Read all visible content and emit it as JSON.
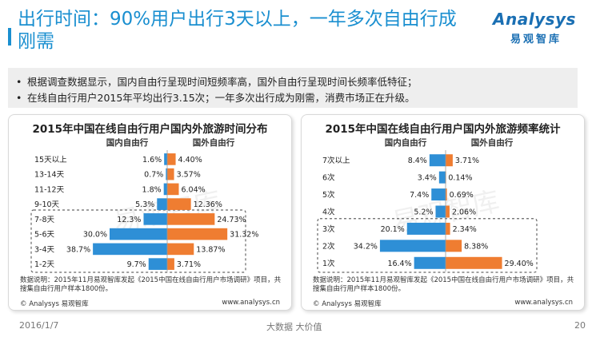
{
  "header": {
    "title": "出行时间：90%用户出行3天以上，一年多次自由行成刚需",
    "logo_word": "Analysys",
    "logo_sub": "易观智库"
  },
  "bullets": [
    "根据调查数据显示，国内自由行呈现时间短频率高，国外自由行呈现时间长频率低特征；",
    "在线自由行用户2015年平均出行3.15次；一年多次出行成为刚需，消费市场正在升级。"
  ],
  "colors": {
    "domestic": "#2e8fd6",
    "foreign": "#ef7d31",
    "title": "#1a8fd0"
  },
  "chart_data": [
    {
      "type": "bar",
      "orientation": "horizontal-diverging",
      "title": "2015年中国在线自由行用户国内外旅游时间分布",
      "legend": [
        "国内自由行",
        "国外自由行"
      ],
      "categories": [
        "15天以上",
        "13-14天",
        "11-12天",
        "9-10天",
        "7-8天",
        "5-6天",
        "3-4天",
        "1-2天"
      ],
      "series": [
        {
          "name": "国内自由行",
          "values": [
            1.6,
            0.7,
            1.8,
            5.3,
            12.3,
            30.0,
            38.7,
            9.7
          ],
          "labels": [
            "1.6%",
            "0.7%",
            "1.8%",
            "5.3%",
            "12.3%",
            "30.0%",
            "38.7%",
            "9.7%"
          ]
        },
        {
          "name": "国外自由行",
          "values": [
            4.4,
            3.57,
            6.04,
            12.36,
            24.73,
            31.32,
            13.87,
            3.71
          ],
          "labels": [
            "4.40%",
            "3.57%",
            "6.04%",
            "12.36%",
            "24.73%",
            "31.32%",
            "13.87%",
            "3.71%"
          ]
        }
      ],
      "xlim": [
        0,
        40
      ],
      "highlight_categories": [
        "7-8天",
        "5-6天",
        "3-4天",
        "1-2天"
      ],
      "watermark": "易观智库",
      "note": "数据说明：2015年11月易观智库发起《2015中国在线自由行用户市场调研》项目，共搜集自由行用户样本1800份。",
      "source_left": "© Analysys 易观智库",
      "source_right": "www.analysys.cn"
    },
    {
      "type": "bar",
      "orientation": "horizontal-diverging",
      "title": "2015年中国在线自由行用户国内外旅游频率统计",
      "legend": [
        "国内自由行",
        "国外自由行"
      ],
      "categories": [
        "7次以上",
        "6次",
        "5次",
        "4次",
        "3次",
        "2次",
        "1次"
      ],
      "series": [
        {
          "name": "国内自由行",
          "values": [
            8.4,
            3.4,
            7.4,
            5.2,
            20.1,
            34.2,
            16.4
          ],
          "labels": [
            "8.4%",
            "3.4%",
            "7.4%",
            "5.2%",
            "20.1%",
            "34.2%",
            "16.4%"
          ]
        },
        {
          "name": "国外自由行",
          "values": [
            3.71,
            0.14,
            0.69,
            2.06,
            2.34,
            8.38,
            29.4
          ],
          "labels": [
            "3.71%",
            "0.14%",
            "0.69%",
            "2.06%",
            "2.34%",
            "8.38%",
            "29.40%"
          ]
        }
      ],
      "xlim": [
        0,
        40
      ],
      "highlight_categories": [
        "3次",
        "2次",
        "1次"
      ],
      "watermark": "易观智库",
      "note": "数据说明：2015年11月易观智库发起《2015中国在线自由行用户市场调研》项目，共搜集自由行用户样本1800份。",
      "source_left": "© Analysys 易观智库",
      "source_right": "www.analysys.cn"
    }
  ],
  "footer": {
    "date": "2016/1/7",
    "middle": "大数据   大价值",
    "page": "20"
  }
}
